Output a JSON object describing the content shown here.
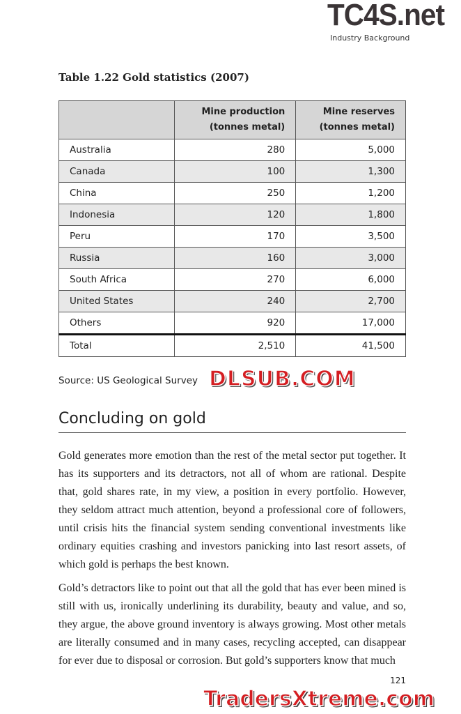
{
  "watermarks": {
    "top": "TC4S.net",
    "middle": "DLSUB.COM",
    "bottom": "TradersXtreme.com"
  },
  "running_head": "Industry Background",
  "table": {
    "caption": "Table 1.22 Gold statistics (2007)",
    "headers": [
      "",
      "Mine production (tonnes metal)",
      "Mine reserves (tonnes metal)"
    ],
    "rows": [
      [
        "Australia",
        "280",
        "5,000"
      ],
      [
        "Canada",
        "100",
        "1,300"
      ],
      [
        "China",
        "250",
        "1,200"
      ],
      [
        "Indonesia",
        "120",
        "1,800"
      ],
      [
        "Peru",
        "170",
        "3,500"
      ],
      [
        "Russia",
        "160",
        "3,000"
      ],
      [
        "South Africa",
        "270",
        "6,000"
      ],
      [
        "United States",
        "240",
        "2,700"
      ],
      [
        "Others",
        "920",
        "17,000"
      ]
    ],
    "total": [
      "Total",
      "2,510",
      "41,500"
    ],
    "source": "Source: US Geological Survey"
  },
  "section_title": "Concluding on gold",
  "paragraphs": [
    "Gold generates more emotion than the rest of the metal sector put together. It has its supporters and its detractors, not all of whom are rational. Despite that, gold shares rate, in my view, a position in every portfolio. However, they seldom attract much attention, beyond a professional core of followers, until crisis hits the financial system sending conventional investments like ordinary equities crashing and investors panicking into last resort assets, of which gold is perhaps the best known.",
    "Gold’s detractors like to point out that all the gold that has ever been mined is still with us, ironically underlining its durability, beauty and value, and so, they argue, the above ground inventory is always growing. Most other metals are literally consumed and in many cases, recycling accepted, can disappear for ever due to disposal or corrosion. But gold’s supporters know that much"
  ],
  "page_number": "121"
}
